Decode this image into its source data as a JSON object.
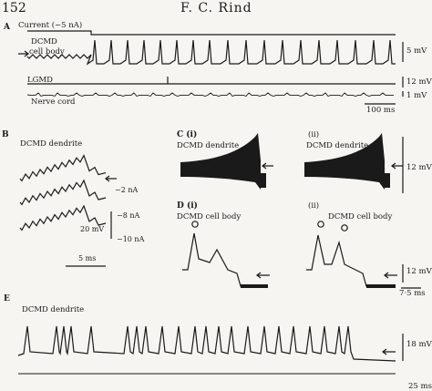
{
  "header": {
    "page_number": "152",
    "author": "F. C. Rind"
  },
  "panels": {
    "A": {
      "letter": "A",
      "current_label": "Current (−5 nA)",
      "trace_label_1": "DCMD",
      "trace_label_2": "cell body",
      "lgmd_label": "LGMD",
      "nerve_label": "Nerve cord",
      "scale_1": "5 mV",
      "scale_2": "12 mV",
      "scale_3": "1 mV",
      "time_scale": "100 ms"
    },
    "B": {
      "letter": "B",
      "title": "DCMD dendrite",
      "label_1": "−2 nA",
      "label_2": "−8 nA",
      "label_3": "−10 nA",
      "volt_scale": "20 mV",
      "time_scale": "5 ms"
    },
    "C": {
      "letter": "C (i)",
      "sub_ii": "(ii)",
      "title_i": "DCMD dendrite",
      "title_ii": "DCMD dendrite",
      "volt_scale": "12 mV"
    },
    "D": {
      "letter": "D (i)",
      "sub_ii": "(ii)",
      "title_i": "DCMD cell body",
      "title_ii": "DCMD cell body",
      "volt_scale": "12 mV",
      "time_scale": "7·5 ms"
    },
    "E": {
      "letter": "E",
      "title": "DCMD dendrite",
      "volt_scale": "18 mV",
      "time_scale": "25 ms"
    }
  }
}
